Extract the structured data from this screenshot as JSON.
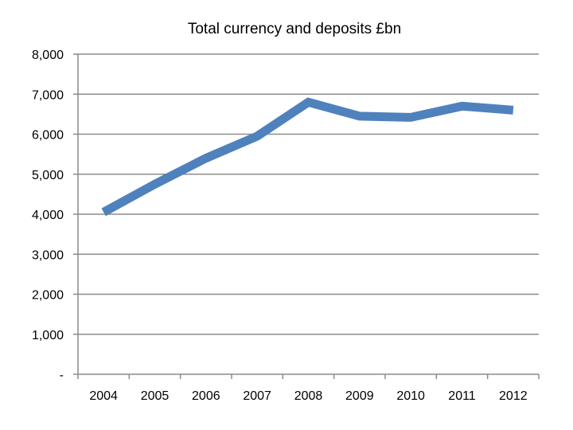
{
  "chart_data": {
    "type": "line",
    "title": "Total currency and deposits £bn",
    "xlabel": "",
    "ylabel": "",
    "categories": [
      "2004",
      "2005",
      "2006",
      "2007",
      "2008",
      "2009",
      "2010",
      "2011",
      "2012"
    ],
    "series": [
      {
        "values": [
          4050,
          4750,
          5400,
          5950,
          6800,
          6450,
          6420,
          6700,
          6600
        ]
      }
    ],
    "ylim": [
      0,
      8000
    ],
    "yticks": [
      0,
      1000,
      2000,
      3000,
      4000,
      5000,
      6000,
      7000,
      8000
    ],
    "ytick_labels": [
      "-",
      "1,000",
      "2,000",
      "3,000",
      "4,000",
      "5,000",
      "6,000",
      "7,000",
      "8,000"
    ],
    "grid": true,
    "legend": "none",
    "colors": {
      "line": "#4f81bd",
      "grid": "#8c8c8c",
      "axis": "#8c8c8c"
    }
  }
}
